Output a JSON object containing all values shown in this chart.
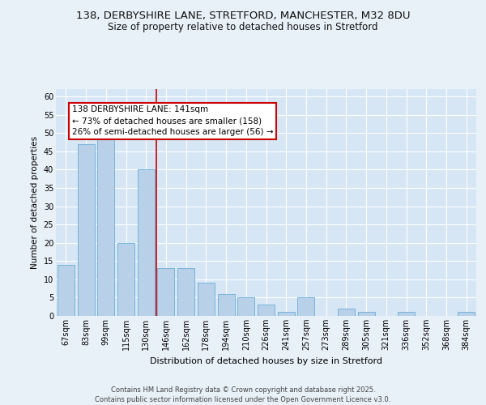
{
  "title_line1": "138, DERBYSHIRE LANE, STRETFORD, MANCHESTER, M32 8DU",
  "title_line2": "Size of property relative to detached houses in Stretford",
  "xlabel": "Distribution of detached houses by size in Stretford",
  "ylabel": "Number of detached properties",
  "categories": [
    "67sqm",
    "83sqm",
    "99sqm",
    "115sqm",
    "130sqm",
    "146sqm",
    "162sqm",
    "178sqm",
    "194sqm",
    "210sqm",
    "226sqm",
    "241sqm",
    "257sqm",
    "273sqm",
    "289sqm",
    "305sqm",
    "321sqm",
    "336sqm",
    "352sqm",
    "368sqm",
    "384sqm"
  ],
  "values": [
    14,
    47,
    50,
    20,
    40,
    13,
    13,
    9,
    6,
    5,
    3,
    1,
    5,
    0,
    2,
    1,
    0,
    1,
    0,
    0,
    1
  ],
  "bar_color": "#b8d0e8",
  "bar_edgecolor": "#6aaed6",
  "plot_bg_color": "#d6e6f5",
  "fig_bg_color": "#e8f0f8",
  "grid_color": "#ffffff",
  "red_line_x": 4.5,
  "annotation_text": "138 DERBYSHIRE LANE: 141sqm\n← 73% of detached houses are smaller (158)\n26% of semi-detached houses are larger (56) →",
  "annotation_box_facecolor": "#ffffff",
  "annotation_box_edgecolor": "#cc0000",
  "footer_text": "Contains HM Land Registry data © Crown copyright and database right 2025.\nContains public sector information licensed under the Open Government Licence v3.0.",
  "ylim": [
    0,
    62
  ],
  "yticks": [
    0,
    5,
    10,
    15,
    20,
    25,
    30,
    35,
    40,
    45,
    50,
    55,
    60
  ],
  "title1_fontsize": 9.5,
  "title2_fontsize": 8.5,
  "ylabel_fontsize": 7.5,
  "xlabel_fontsize": 8.0,
  "tick_fontsize": 7.0,
  "annot_fontsize": 7.5,
  "footer_fontsize": 6.0
}
